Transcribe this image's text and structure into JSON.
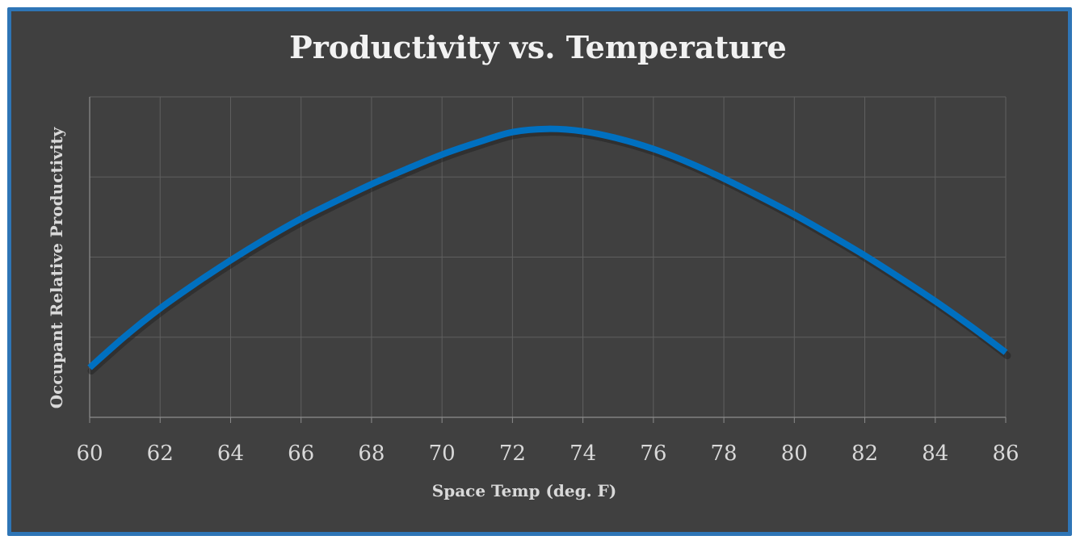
{
  "chart_data": {
    "type": "line",
    "title": "Productivity vs. Temperature",
    "xlabel": "Space Temp (deg. F)",
    "ylabel": "Occupant Relative Productivity",
    "xlim": [
      60,
      86
    ],
    "ylim": [
      0.6,
      1.0
    ],
    "x_ticks": [
      "60",
      "62",
      "64",
      "66",
      "68",
      "70",
      "72",
      "74",
      "76",
      "78",
      "80",
      "82",
      "84",
      "86"
    ],
    "y_tick_labels_shown": false,
    "grid": true,
    "series": [
      {
        "name": "Relative Productivity",
        "color": "#0070C0",
        "x": [
          60,
          61,
          62,
          63,
          64,
          65,
          66,
          67,
          68,
          69,
          70,
          71,
          72,
          73,
          74,
          75,
          76,
          77,
          78,
          79,
          80,
          81,
          82,
          83,
          84,
          85,
          86
        ],
        "y": [
          0.662,
          0.701,
          0.736,
          0.767,
          0.796,
          0.823,
          0.848,
          0.87,
          0.891,
          0.91,
          0.928,
          0.943,
          0.956,
          0.96,
          0.957,
          0.948,
          0.935,
          0.918,
          0.898,
          0.876,
          0.853,
          0.828,
          0.802,
          0.774,
          0.745,
          0.714,
          0.681
        ]
      }
    ]
  }
}
